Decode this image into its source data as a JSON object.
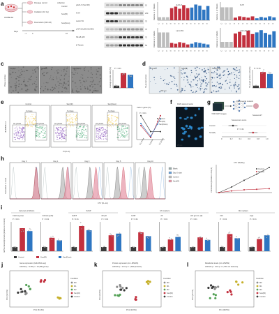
{
  "colors": {
    "control": "#3a3a3a",
    "senir": "#c2303e",
    "sendoxo": "#2e76c2",
    "m0": "#8c8c8c",
    "m1": "#c6b02a",
    "m2": "#55a257",
    "pink": "#e79bab",
    "gray": "#bdbdbd"
  },
  "panel_a": {
    "label": "a",
    "cell_line": "C57BL/6J",
    "passage": "Passage control",
    "collection": "collection",
    "irradiation": "Irradiation (10 Gy)",
    "doxorubicin": "Doxorubicin (500 nM)",
    "days_label": "Days",
    "day_ticks": [
      "−1",
      "0",
      "10"
    ],
    "lanes": [
      "Control",
      "Sen(IR)",
      "Sen(Doxo)"
    ],
    "blots": [
      "γH2A.X (Ser139)",
      "Ki-67",
      "Lamin B1",
      "p-NF-κB p65 (Ser536)",
      "NF-κB p65",
      "β-Tubulin"
    ],
    "kda": [
      "15",
      "250",
      "75",
      "75",
      "75",
      "50"
    ],
    "bar_titles": [
      "γH2A.X",
      "Ki-67",
      "Lamin B1",
      "p-NF-κB p65"
    ],
    "y_label": "Relative to β-Tubulin"
  },
  "panel_c": {
    "label": "c",
    "y_label": "Phase contrast",
    "images": [
      "Control",
      "Sen(IR)",
      "Sen(Doxo)"
    ],
    "scale": "100 μm",
    "metric": "Average positive cells (%)",
    "p": "P < 0.01"
  },
  "panel_d": {
    "label": "d",
    "y_label": "SA-β-Gal activity",
    "images": [
      "Control",
      "Sen(IR)",
      "Sen(Doxo)"
    ],
    "scale": "200 μm",
    "metric": "SA-β-gal positive cells (%)",
    "p": "P < 0.01"
  },
  "panel_e": {
    "label": "e",
    "plots": [
      "Control",
      "Sen(IR)",
      "Sen(Doxo)"
    ],
    "phases": [
      "G1 phase",
      "S phase",
      "G2 phase"
    ],
    "xaxis": "PI (FL-3)",
    "yaxis": "dE 488/BL-1A",
    "chart_title": "Cells in gates (%)",
    "p": "P < 0.01"
  },
  "panel_f": {
    "label": "f",
    "title": "DAPI-stained nuclei",
    "scale": "25 μm"
  },
  "panel_g": {
    "label": "g",
    "step1": ">500 DAPI images",
    "step2": "Deep neural network",
    "question": "Senescent?",
    "rows": [
      "Control",
      "Sen(IR)"
    ],
    "axis": "Senescence score",
    "p": "P < 0.01"
  },
  "panel_h": {
    "label": "h",
    "days": [
      "Day 0",
      "Day 1",
      "Day 3",
      "Day 5",
      "Day 10"
    ],
    "legend": [
      "Blank",
      "Day 0 stain",
      "Control",
      "Sen(IR)"
    ],
    "xaxis": "CTV (FL-1A)",
    "yaxis": "Normalized to mode",
    "chart_title": "CTV labelling",
    "chart_ylabel": "Cell division (Relative to Day 0)"
  },
  "panel_i": {
    "label": "i",
    "groups": [
      "Cell-cycle inhibitors",
      "SASP",
      "M1 markers",
      "M2 markers"
    ],
    "genes": [
      "Cdkn1a (p21)",
      "Cdkn2a (p16)",
      "Gdf15",
      "Mmp9",
      "Cd38",
      "Il6",
      "Il1b (pro-IL-1β)",
      "Il10",
      "Arg1"
    ],
    "legend": [
      "Control",
      "Sen(IR)",
      "Sen(Doxo)"
    ],
    "yaxis": "mRNA transcript levels (relative to Control)",
    "p": "P < 0.01"
  },
  "panel_j": {
    "label": "j",
    "title": "Gene expression (bulk RNA-seq)",
    "subtitle": "ANOVA q < 0.05 (n = 10,285 genes)",
    "xaxis": "PC1 (54.4%)",
    "yaxis": "PC2 (12.4%)",
    "legend_title": "Condition",
    "legend": [
      "M0",
      "M1",
      "M2",
      "Sen(IR)",
      "Control"
    ]
  },
  "panel_k": {
    "label": "k",
    "title": "Protein expression (LC–MS/MS)",
    "subtitle": "ANOVA q < 0.01 (n = 1,699 proteins)",
    "xaxis": "PC1 (30.6%)",
    "yaxis": "PC2 (13.9%)",
    "legend_title": "Condition",
    "legend": [
      "M0",
      "M1",
      "M2",
      "Sen(IR)",
      "Control"
    ]
  },
  "panel_l": {
    "label": "l",
    "title": "Metabolite levels (LC–MS/MS)",
    "subtitle": "ANOVA q < 0.01 (n = 2,781 m/z features)",
    "xaxis": "PC1 (38.5%)",
    "yaxis": "PC2 (12.1%)",
    "legend_title": "Condition",
    "legend": [
      "M0",
      "M1",
      "M2",
      "Sen(IR)",
      "Control"
    ]
  }
}
